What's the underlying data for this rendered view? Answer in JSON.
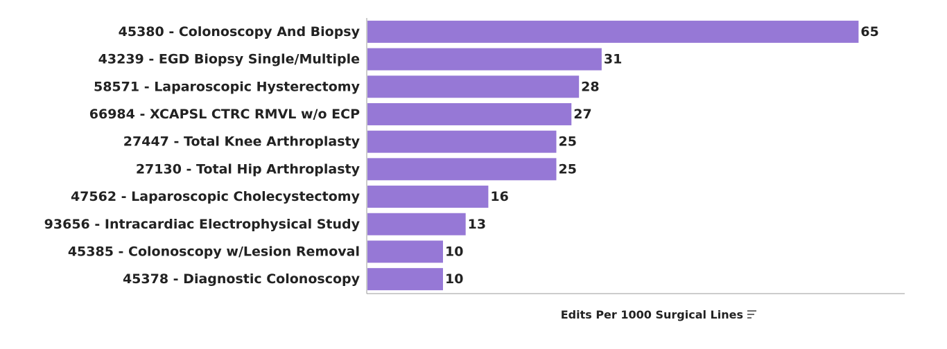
{
  "chart_data": {
    "type": "bar",
    "orientation": "horizontal",
    "categories": [
      "45380 - Colonoscopy And Biopsy",
      "43239 - EGD Biopsy Single/Multiple",
      "58571 - Laparoscopic Hysterectomy",
      "66984 - XCAPSL CTRC RMVL w/o ECP",
      "27447 - Total Knee Arthroplasty",
      "27130 - Total Hip Arthroplasty",
      "47562 - Laparoscopic Cholecystectomy",
      "93656 - Intracardiac Electrophysical Study",
      "45385 - Colonoscopy w/Lesion Removal",
      "45378 - Diagnostic Colonoscopy"
    ],
    "values": [
      65,
      31,
      28,
      27,
      25,
      25,
      16,
      13,
      10,
      10
    ],
    "data_labels": [
      "65",
      "31",
      "28",
      "27",
      "25",
      "25",
      "16",
      "13",
      "10",
      "10"
    ],
    "xlabel": "Edits Per 1000 Surgical Lines",
    "xlim": [
      0,
      71.2
    ],
    "grid": false,
    "bar_color": "#9678d6",
    "axis_color": "#999999",
    "sort_icon": "sort-lines-icon"
  }
}
